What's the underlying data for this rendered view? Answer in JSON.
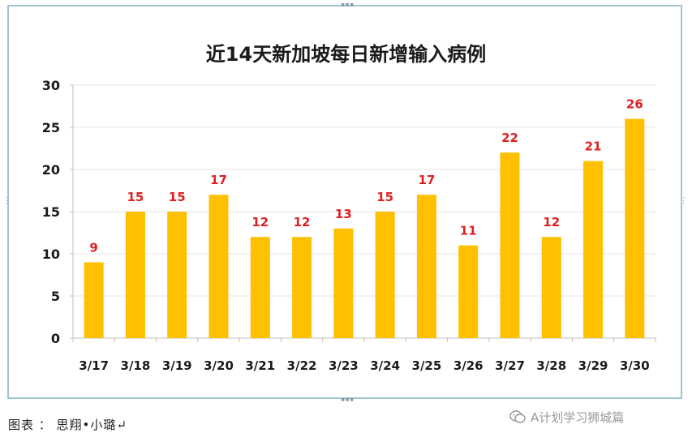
{
  "chart_data": {
    "type": "bar",
    "title": "近14天新加坡每日新增输入病例",
    "categories": [
      "3/17",
      "3/18",
      "3/19",
      "3/20",
      "3/21",
      "3/22",
      "3/23",
      "3/24",
      "3/25",
      "3/26",
      "3/27",
      "3/28",
      "3/29",
      "3/30"
    ],
    "values": [
      9,
      15,
      15,
      17,
      12,
      12,
      13,
      15,
      17,
      11,
      22,
      12,
      21,
      26
    ],
    "ylim": [
      0,
      30
    ],
    "yticks": [
      0,
      5,
      10,
      15,
      20,
      25,
      30
    ],
    "grid": true,
    "legend": "none",
    "colors": {
      "bar": "#FFC000",
      "data_label": "#E02020",
      "grid": "#e6e6e6",
      "frame": "#9fc4d2"
    }
  },
  "caption": "图表 ： 思翔•小璐↵",
  "watermark": {
    "text": "A计划学习狮城篇",
    "icon": "wechat-icon"
  }
}
